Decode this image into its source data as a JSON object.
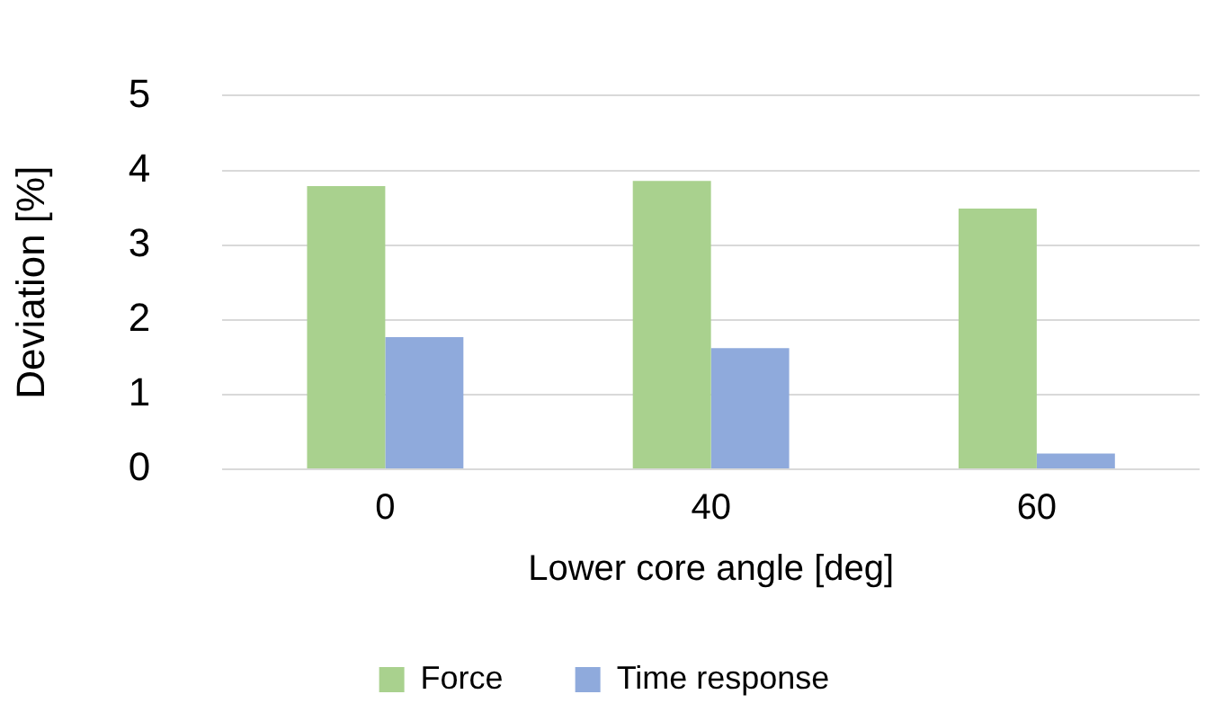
{
  "chart_data": {
    "type": "bar",
    "xlabel": "Lower core angle [deg]",
    "ylabel": "Deviation [%]",
    "categories": [
      "0",
      "40",
      "60"
    ],
    "series": [
      {
        "name": "Force",
        "color": "#a9d18e",
        "values": [
          3.79,
          3.86,
          3.49
        ]
      },
      {
        "name": "Time response",
        "color": "#8faadc",
        "values": [
          1.77,
          1.62,
          0.21
        ]
      }
    ],
    "ylim": [
      0,
      5
    ],
    "yticks": [
      0,
      1,
      2,
      3,
      4,
      5
    ],
    "grid": "y",
    "legend": "bottom"
  }
}
